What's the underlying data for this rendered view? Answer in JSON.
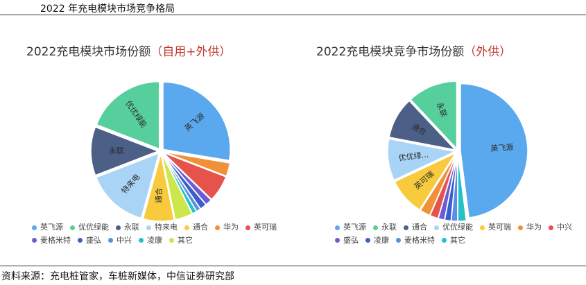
{
  "page": {
    "title": "2022 年充电模块市场竞争格局",
    "source": "资料来源：充电桩管家，车桩新媒体，中信证券研究部"
  },
  "chart_data": [
    {
      "type": "pie",
      "title": "2022充电模块市场份额",
      "subtitle": "（自用+外供）",
      "slices": [
        {
          "name": "英飞源",
          "value": 26,
          "color": "#5aa8ee",
          "label": "英飞源"
        },
        {
          "name": "华为",
          "value": 3,
          "color": "#f0913a",
          "label": ""
        },
        {
          "name": "英可瑞",
          "value": 6,
          "color": "#e5534b",
          "label": ""
        },
        {
          "name": "麦格米特",
          "value": 1.5,
          "color": "#6c5bd6",
          "label": ""
        },
        {
          "name": "盛弘",
          "value": 1.5,
          "color": "#3a5fcd",
          "label": ""
        },
        {
          "name": "中兴",
          "value": 1,
          "color": "#5b8ee6",
          "label": ""
        },
        {
          "name": "凌康",
          "value": 1,
          "color": "#26c0c7",
          "label": ""
        },
        {
          "name": "其它",
          "value": 4,
          "color": "#cde64b",
          "label": ""
        },
        {
          "name": "通合",
          "value": 7,
          "color": "#f7cb3d",
          "label": "通合"
        },
        {
          "name": "特来电",
          "value": 14,
          "color": "#a9d4f5",
          "label": "特来电"
        },
        {
          "name": "永联",
          "value": 11,
          "color": "#4c5f86",
          "label": "永联"
        },
        {
          "name": "优优绿能",
          "value": 18,
          "color": "#56cf9d",
          "label": "优优绿能"
        }
      ],
      "legend": [
        "英飞源",
        "优优绿能",
        "永联",
        "特来电",
        "通合",
        "华为",
        "英可瑞",
        "麦格米特",
        "盛弘",
        "中兴",
        "凌康",
        "其它"
      ],
      "legend_rows": [
        7,
        5
      ]
    },
    {
      "type": "pie",
      "title": "2022充电模块竞争市场份额",
      "subtitle": "（外供）",
      "slices": [
        {
          "name": "英飞源",
          "value": 48,
          "color": "#5aa8ee",
          "label": "英飞源"
        },
        {
          "name": "其它",
          "value": 2,
          "color": "#26c0c7",
          "label": ""
        },
        {
          "name": "麦格米特",
          "value": 1.5,
          "color": "#5b8ee6",
          "label": ""
        },
        {
          "name": "凌康",
          "value": 1.5,
          "color": "#3a5fcd",
          "label": ""
        },
        {
          "name": "盛弘",
          "value": 1.5,
          "color": "#6c5bd6",
          "label": ""
        },
        {
          "name": "中兴",
          "value": 2,
          "color": "#e5534b",
          "label": ""
        },
        {
          "name": "华为",
          "value": 2.5,
          "color": "#f0913a",
          "label": ""
        },
        {
          "name": "英可瑞",
          "value": 9,
          "color": "#f7cb3d",
          "label": "英可瑞"
        },
        {
          "name": "优优绿能",
          "value": 10,
          "color": "#a9d4f5",
          "label": "优优绿..."
        },
        {
          "name": "通合",
          "value": 10,
          "color": "#4c5f86",
          "label": "通合"
        },
        {
          "name": "永联",
          "value": 12,
          "color": "#56cf9d",
          "label": "永联"
        }
      ],
      "legend": [
        "英飞源",
        "永联",
        "通合",
        "优优绿能",
        "英可瑞",
        "华为",
        "中兴",
        "盛弘",
        "凌康",
        "麦格米特",
        "其它"
      ],
      "legend_rows": [
        7,
        4
      ]
    }
  ]
}
